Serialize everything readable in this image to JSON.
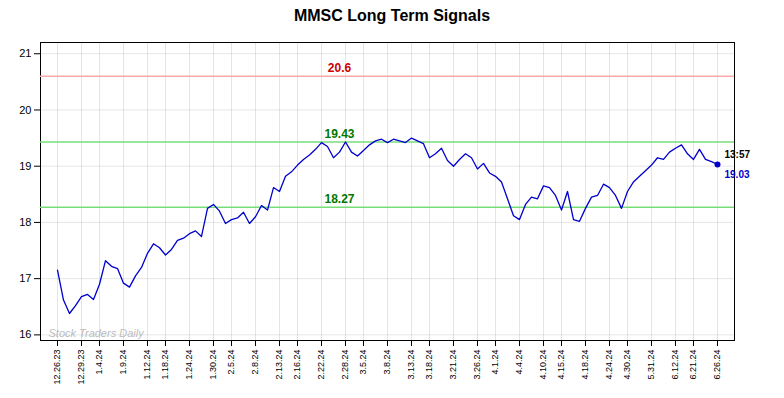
{
  "chart_data": {
    "type": "line",
    "title": "MMSC Long Term Signals",
    "categories": [
      "12.26.23",
      null,
      null,
      null,
      "12.29.23",
      null,
      null,
      "1.4.24",
      null,
      null,
      null,
      "1.9.24",
      null,
      null,
      null,
      "1.12.24",
      null,
      null,
      "1.18.24",
      null,
      null,
      null,
      "1.24.24",
      null,
      null,
      null,
      "1.30.24",
      null,
      null,
      "2.5.24",
      null,
      null,
      null,
      "2.8.24",
      null,
      null,
      null,
      "2.13.24",
      null,
      null,
      "2.16.24",
      null,
      null,
      null,
      "2.22.24",
      null,
      null,
      null,
      "2.28.24",
      null,
      null,
      "3.5.24",
      null,
      null,
      null,
      "3.8.24",
      null,
      null,
      null,
      "3.13.24",
      null,
      null,
      "3.18.24",
      null,
      null,
      null,
      "3.21.24",
      null,
      null,
      null,
      "3.26.24",
      null,
      null,
      "4.1.24",
      null,
      null,
      null,
      "4.4.24",
      null,
      null,
      null,
      "4.10.24",
      null,
      null,
      "4.15.24",
      null,
      null,
      null,
      "4.18.24",
      null,
      null,
      null,
      "4.24.24",
      null,
      null,
      "4.30.24",
      null,
      null,
      null,
      "5.31.24",
      null,
      null,
      null,
      "6.12.24",
      null,
      null,
      "6.21.24",
      null,
      null,
      null,
      "6.26.24"
    ],
    "values": [
      17.15,
      16.62,
      16.38,
      16.52,
      16.68,
      16.72,
      16.63,
      16.9,
      17.32,
      17.22,
      17.18,
      16.92,
      16.85,
      17.05,
      17.2,
      17.45,
      17.62,
      17.55,
      17.42,
      17.52,
      17.68,
      17.72,
      17.8,
      17.85,
      17.75,
      18.25,
      18.32,
      18.2,
      17.98,
      18.05,
      18.08,
      18.18,
      17.98,
      18.1,
      18.3,
      18.22,
      18.62,
      18.55,
      18.82,
      18.9,
      19.02,
      19.12,
      19.2,
      19.3,
      19.42,
      19.35,
      19.15,
      19.25,
      19.43,
      19.25,
      19.18,
      19.28,
      19.38,
      19.45,
      19.48,
      19.42,
      19.48,
      19.45,
      19.42,
      19.5,
      19.45,
      19.4,
      19.15,
      19.22,
      19.32,
      19.1,
      19.0,
      19.12,
      19.22,
      19.15,
      18.95,
      19.05,
      18.88,
      18.82,
      18.72,
      18.42,
      18.12,
      18.05,
      18.32,
      18.45,
      18.42,
      18.65,
      18.62,
      18.48,
      18.22,
      18.55,
      18.05,
      18.02,
      18.25,
      18.45,
      18.48,
      18.68,
      18.62,
      18.48,
      18.25,
      18.55,
      18.72,
      18.82,
      18.92,
      19.02,
      19.15,
      19.12,
      19.25,
      19.32,
      19.38,
      19.22,
      19.12,
      19.3,
      19.12,
      19.08,
      19.03
    ],
    "color": "#0000cc",
    "ylim": [
      15.9,
      21.2
    ],
    "yticks": [
      16,
      17,
      18,
      19,
      20,
      21
    ],
    "grid": true,
    "hlines": [
      {
        "value": 20.6,
        "label": "20.6",
        "color": "#ffaaaa",
        "text_color": "#cc0000"
      },
      {
        "value": 19.43,
        "label": "19.43",
        "color": "#77dd77",
        "text_color": "#007700"
      },
      {
        "value": 18.27,
        "label": "18.27",
        "color": "#77dd77",
        "text_color": "#007700"
      }
    ],
    "annotations": [
      {
        "text": "13:57",
        "position": "above",
        "color": "#000000"
      },
      {
        "text": "19.03",
        "position": "below",
        "color": "#0000cc"
      }
    ],
    "watermark": "Stock Traders Daily"
  }
}
